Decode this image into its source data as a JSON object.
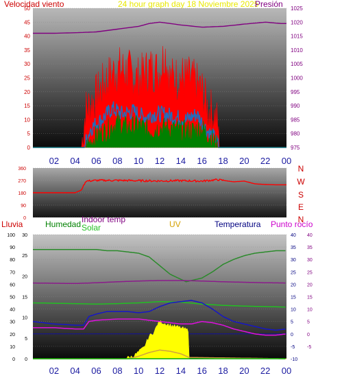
{
  "chart_data": [
    {
      "type": "line",
      "title": "24 hour graph day   18 Noviembre 2025",
      "left_axis_title": "Velocidad viento",
      "right_axis_title": "Presión",
      "x_ticks": [
        "02",
        "04",
        "06",
        "08",
        "10",
        "12",
        "14",
        "16",
        "18",
        "20",
        "22",
        "00"
      ],
      "left_ylim": [
        0,
        50
      ],
      "left_ticks": [
        "0",
        "5",
        "10",
        "15",
        "20",
        "25",
        "30",
        "35",
        "40",
        "45",
        "50"
      ],
      "right_ylim": [
        975,
        1025
      ],
      "right_ticks": [
        "975",
        "980",
        "985",
        "990",
        "995",
        "1000",
        "1005",
        "1010",
        "1015",
        "1020",
        "1025"
      ],
      "series": [
        {
          "key": "pressure",
          "axis": "right",
          "color": "#800080",
          "x": [
            0,
            2,
            4,
            6,
            8,
            10,
            11,
            12,
            14,
            16,
            18,
            20,
            22,
            23.5
          ],
          "values": [
            1016,
            1016,
            1016.2,
            1016.5,
            1017.5,
            1018.5,
            1019.5,
            1020,
            1019,
            1018.2,
            1018.5,
            1019.3,
            1020,
            1019.5
          ]
        },
        {
          "key": "gust",
          "axis": "left",
          "color": "#ff0000",
          "fill": true,
          "x": [
            0,
            4.6,
            5.0,
            6,
            7,
            8,
            9,
            10,
            11,
            12,
            12.5,
            13,
            14,
            15,
            16,
            16.5,
            17,
            17.5,
            17.6,
            24
          ],
          "values": [
            0,
            0,
            13,
            18,
            24,
            28,
            27,
            24,
            28,
            27,
            34,
            24,
            25,
            24,
            20,
            14,
            12,
            8,
            0,
            0
          ]
        },
        {
          "key": "speed",
          "axis": "left",
          "color": "#1e6fbf",
          "x": [
            0,
            4.8,
            5.5,
            6.5,
            7.5,
            8.5,
            9.5,
            10.5,
            11.5,
            12.5,
            13.5,
            14.5,
            15.5,
            16.5,
            17.3,
            17.6,
            24
          ],
          "values": [
            0,
            0,
            7,
            10,
            14,
            12,
            13,
            11,
            12,
            12,
            11,
            10,
            12,
            6,
            3,
            0,
            0
          ]
        },
        {
          "key": "avg",
          "axis": "left",
          "color": "#008000",
          "fill": true,
          "x": [
            0,
            5,
            6,
            7,
            8,
            9,
            10,
            11,
            12,
            13,
            14,
            15,
            16,
            17,
            17.5,
            24
          ],
          "values": [
            0,
            0,
            4,
            6,
            9,
            7,
            8,
            6,
            7,
            7,
            6,
            6,
            7,
            3,
            0,
            0
          ]
        }
      ]
    },
    {
      "type": "line",
      "title": "",
      "left_ylim": [
        0,
        360
      ],
      "left_ticks": [
        "0",
        "90",
        "180",
        "270",
        "360"
      ],
      "right_labels": [
        "N",
        "W",
        "S",
        "E",
        "N"
      ],
      "series": [
        {
          "key": "direction",
          "color": "#ff0000",
          "x": [
            0,
            4,
            4.6,
            5,
            6,
            8,
            10,
            12,
            14,
            16,
            17.5,
            18,
            19,
            20,
            21,
            22,
            23,
            24
          ],
          "values": [
            180,
            180,
            200,
            265,
            270,
            270,
            268,
            266,
            268,
            265,
            275,
            270,
            260,
            265,
            245,
            240,
            238,
            238
          ]
        }
      ]
    },
    {
      "type": "line",
      "title": "",
      "labels": {
        "rain": "Lluvia",
        "humidity": "Humedad",
        "indoor": "Indoor temp",
        "solar": "Solar",
        "uv": "UV",
        "temperature": "Temperatura",
        "dewpoint": "Punto rocío"
      },
      "x_ticks": [
        "02",
        "04",
        "06",
        "08",
        "10",
        "12",
        "14",
        "16",
        "18",
        "20",
        "22",
        "00"
      ],
      "rain_ylim": [
        0,
        100
      ],
      "rain_ticks": [
        "0",
        "10",
        "20",
        "30",
        "40",
        "50",
        "60",
        "70",
        "80",
        "90",
        "100"
      ],
      "uv_ylim": [
        0,
        30
      ],
      "uv_ticks": [
        "0",
        "5",
        "10",
        "15",
        "20",
        "25",
        "30"
      ],
      "temp_ylim": [
        -10,
        40
      ],
      "temp_ticks_right": [
        "-10",
        "-5",
        "0",
        "5",
        "10",
        "15",
        "20",
        "25",
        "30",
        "35",
        "40"
      ],
      "temp_ticks_far_right": [
        "-5",
        "0",
        "5",
        "10",
        "15",
        "20",
        "25",
        "30",
        "35",
        "40"
      ],
      "series": [
        {
          "key": "humidity",
          "axis": "rain",
          "color": "#2a8a2a",
          "x": [
            0,
            4,
            6,
            7,
            8,
            9,
            10,
            11,
            12,
            13,
            14,
            14.5,
            15,
            16,
            17,
            18,
            19,
            20,
            21,
            22,
            23,
            24
          ],
          "values": [
            88,
            88,
            88,
            87,
            87,
            86,
            85,
            82,
            75,
            68,
            64,
            62,
            63,
            65,
            70,
            76,
            80,
            83,
            85,
            86,
            87,
            87
          ]
        },
        {
          "key": "indoor",
          "axis": "temp",
          "color": "#8b1a8b",
          "x": [
            0,
            4,
            6,
            8,
            10,
            12,
            14,
            16,
            18,
            20,
            22,
            24
          ],
          "values": [
            20.5,
            20.3,
            20.6,
            21,
            21.3,
            21.5,
            21.5,
            21.3,
            21,
            20.8,
            20.6,
            20.5
          ]
        },
        {
          "key": "solar_temp",
          "axis": "temp",
          "color": "#22c022",
          "x": [
            0,
            4,
            6,
            8,
            10,
            12,
            14,
            16,
            18,
            20,
            22,
            24
          ],
          "values": [
            12.5,
            12.2,
            12,
            12.2,
            12.5,
            13,
            12.8,
            12,
            11.5,
            11.2,
            11,
            10.8
          ]
        },
        {
          "key": "temperature",
          "axis": "temp",
          "color": "#1616c8",
          "x": [
            0,
            1,
            2,
            3,
            4,
            4.8,
            5.3,
            6,
            7,
            8,
            9,
            10,
            11,
            12,
            13,
            14,
            15,
            16,
            17,
            18,
            19,
            20,
            21,
            22,
            23,
            24
          ],
          "values": [
            5,
            4.5,
            4,
            3.8,
            3.5,
            3.5,
            7,
            8,
            9,
            9,
            9,
            8.5,
            9,
            11,
            12.5,
            13,
            13.5,
            12.5,
            10,
            7,
            5,
            4,
            3,
            2,
            1.5,
            2
          ]
        },
        {
          "key": "dewpoint",
          "axis": "temp",
          "color": "#e010e0",
          "x": [
            0,
            2,
            4,
            4.8,
            5.3,
            6,
            8,
            10,
            12,
            13,
            14,
            15,
            16,
            17,
            18,
            19,
            20,
            21,
            22,
            23,
            24
          ],
          "values": [
            2.5,
            2.5,
            2,
            2,
            5,
            5.5,
            6,
            6,
            5,
            4.5,
            4,
            4,
            5,
            4.5,
            3.5,
            2,
            1,
            0,
            -0.5,
            -0.5,
            0
          ]
        },
        {
          "key": "solar",
          "axis": "rain",
          "color": "#ffff00",
          "fill": true,
          "x": [
            0,
            8.5,
            9.5,
            10.5,
            11,
            11.5,
            11.8,
            12,
            12.3,
            13,
            14,
            14.7,
            14.8,
            24
          ],
          "values": [
            0,
            0,
            2,
            9,
            18,
            22,
            28,
            30,
            29,
            27,
            25,
            23,
            0,
            0
          ]
        },
        {
          "key": "uv",
          "axis": "rain",
          "color": "#d0a040",
          "x": [
            0,
            9,
            10,
            11,
            12,
            13,
            14,
            14.8,
            24
          ],
          "values": [
            0,
            0,
            2,
            5,
            7,
            6,
            4,
            1,
            0
          ]
        },
        {
          "key": "rain",
          "axis": "rain",
          "color": "#00aa00",
          "x": [
            0,
            24
          ],
          "values": [
            0,
            0
          ]
        }
      ]
    }
  ]
}
